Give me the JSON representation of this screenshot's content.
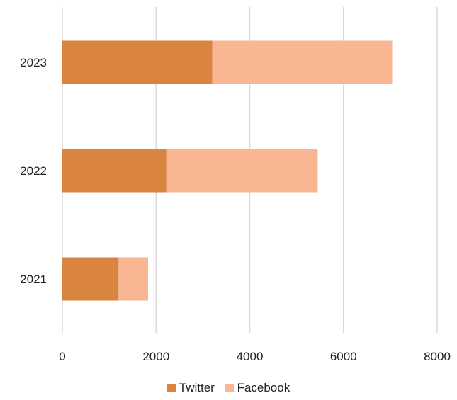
{
  "chart_data": {
    "type": "bar",
    "orientation": "horizontal",
    "stacked": true,
    "categories": [
      "2021",
      "2022",
      "2023"
    ],
    "series": [
      {
        "name": "Twitter",
        "values": [
          1200,
          2220,
          3200
        ],
        "color": "#D9843F"
      },
      {
        "name": "Facebook",
        "values": [
          630,
          3230,
          3840
        ],
        "color": "#F8B692"
      }
    ],
    "xlim": [
      0,
      8000
    ],
    "xticks": [
      0,
      2000,
      4000,
      6000,
      8000
    ],
    "grid": "vertical",
    "legend_position": "bottom"
  }
}
